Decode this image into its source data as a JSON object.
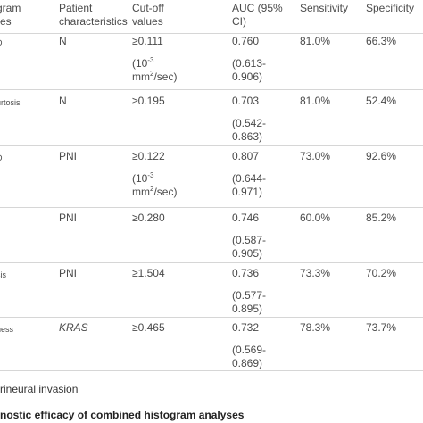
{
  "table": {
    "header": [
      [
        "gram",
        "res"
      ],
      [
        "Patient",
        "characteristics"
      ],
      [
        "Cut-off",
        "values"
      ],
      [
        "AUC (95%",
        "CI)"
      ],
      [
        "Sensitivity"
      ],
      [
        "Specificity"
      ]
    ],
    "rows": [
      {
        "feature": "D",
        "patient": "N",
        "cutoff": "≥0.111",
        "cutoff_note": [
          "(10",
          "-3",
          "mm",
          "2",
          "/sec)"
        ],
        "auc": "0.760",
        "auc_ci": [
          "(0.613-",
          "0.906)"
        ],
        "sensitivity": "81.0%",
        "specificity": "66.3%"
      },
      {
        "feature": "urtosis",
        "patient": "N",
        "cutoff": "≥0.195",
        "auc": "0.703",
        "auc_ci": [
          "(0.542-",
          "0.863)"
        ],
        "sensitivity": "81.0%",
        "specificity": "52.4%"
      },
      {
        "feature": "D",
        "patient": "PNI",
        "cutoff": "≥0.122",
        "cutoff_note": [
          "(10",
          "-3",
          "mm",
          "2",
          "/sec)"
        ],
        "auc": "0.807",
        "auc_ci": [
          "(0.644-",
          "0.971)"
        ],
        "sensitivity": "73.0%",
        "specificity": "92.6%"
      },
      {
        "patient": "PNI",
        "cutoff": "≥0.280",
        "auc": "0.746",
        "auc_ci": [
          "(0.587-",
          "0.905)"
        ],
        "sensitivity": "60.0%",
        "specificity": "85.2%"
      },
      {
        "feature": "sis",
        "patient": "PNI",
        "cutoff": "≥1.504",
        "auc": "0.736",
        "auc_ci": [
          "(0.577-",
          "0.895)"
        ],
        "sensitivity": "73.3%",
        "specificity": "70.2%"
      },
      {
        "feature": "ness",
        "patient": "KRAS",
        "cutoff": "≥0.465",
        "auc": "0.732",
        "auc_ci": [
          "(0.569-",
          "0.869)"
        ],
        "sensitivity": "78.3%",
        "specificity": "73.7%"
      }
    ]
  },
  "footnote": "rineural invasion",
  "next_title": "nostic efficacy of combined histogram analyses"
}
